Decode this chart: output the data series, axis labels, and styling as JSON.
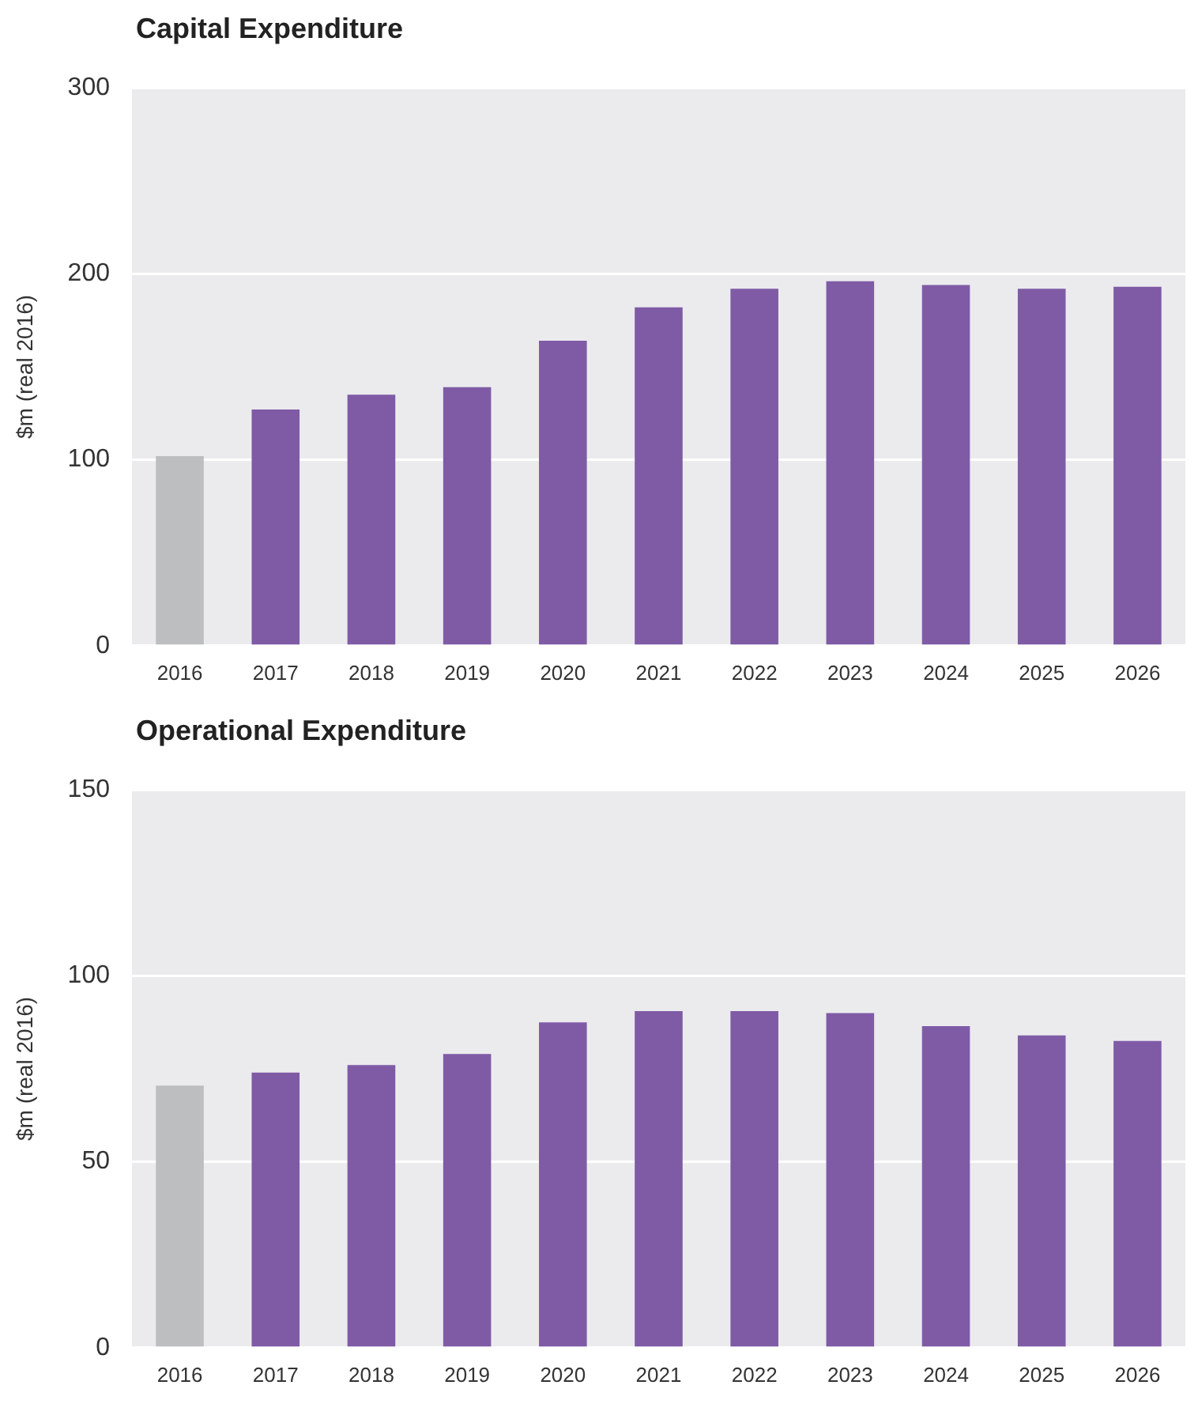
{
  "chart_data": [
    {
      "type": "bar",
      "title": "Capital Expenditure",
      "ylabel": "$m (real 2016)",
      "categories": [
        "2016",
        "2017",
        "2018",
        "2019",
        "2020",
        "2021",
        "2022",
        "2023",
        "2024",
        "2025",
        "2026"
      ],
      "values": [
        102,
        127,
        135,
        139,
        164,
        182,
        192,
        196,
        194,
        192,
        193
      ],
      "colors": [
        "#bdbec0",
        "#7f5ba6",
        "#7f5ba6",
        "#7f5ba6",
        "#7f5ba6",
        "#7f5ba6",
        "#7f5ba6",
        "#7f5ba6",
        "#7f5ba6",
        "#7f5ba6",
        "#7f5ba6"
      ],
      "ylim": [
        0,
        300
      ],
      "yticks": [
        0,
        100,
        200,
        300
      ],
      "grid": "y",
      "legend": false
    },
    {
      "type": "bar",
      "title": "Operational Expenditure",
      "ylabel": "$m (real 2016)",
      "categories": [
        "2016",
        "2017",
        "2018",
        "2019",
        "2020",
        "2021",
        "2022",
        "2023",
        "2024",
        "2025",
        "2026"
      ],
      "values": [
        70.5,
        74,
        76,
        79,
        87.5,
        90.5,
        90.5,
        90,
        86.5,
        84,
        82.5
      ],
      "colors": [
        "#bdbec0",
        "#7f5ba6",
        "#7f5ba6",
        "#7f5ba6",
        "#7f5ba6",
        "#7f5ba6",
        "#7f5ba6",
        "#7f5ba6",
        "#7f5ba6",
        "#7f5ba6",
        "#7f5ba6"
      ],
      "ylim": [
        0,
        150
      ],
      "yticks": [
        0,
        50,
        100,
        150
      ],
      "grid": "y",
      "legend": false
    }
  ]
}
